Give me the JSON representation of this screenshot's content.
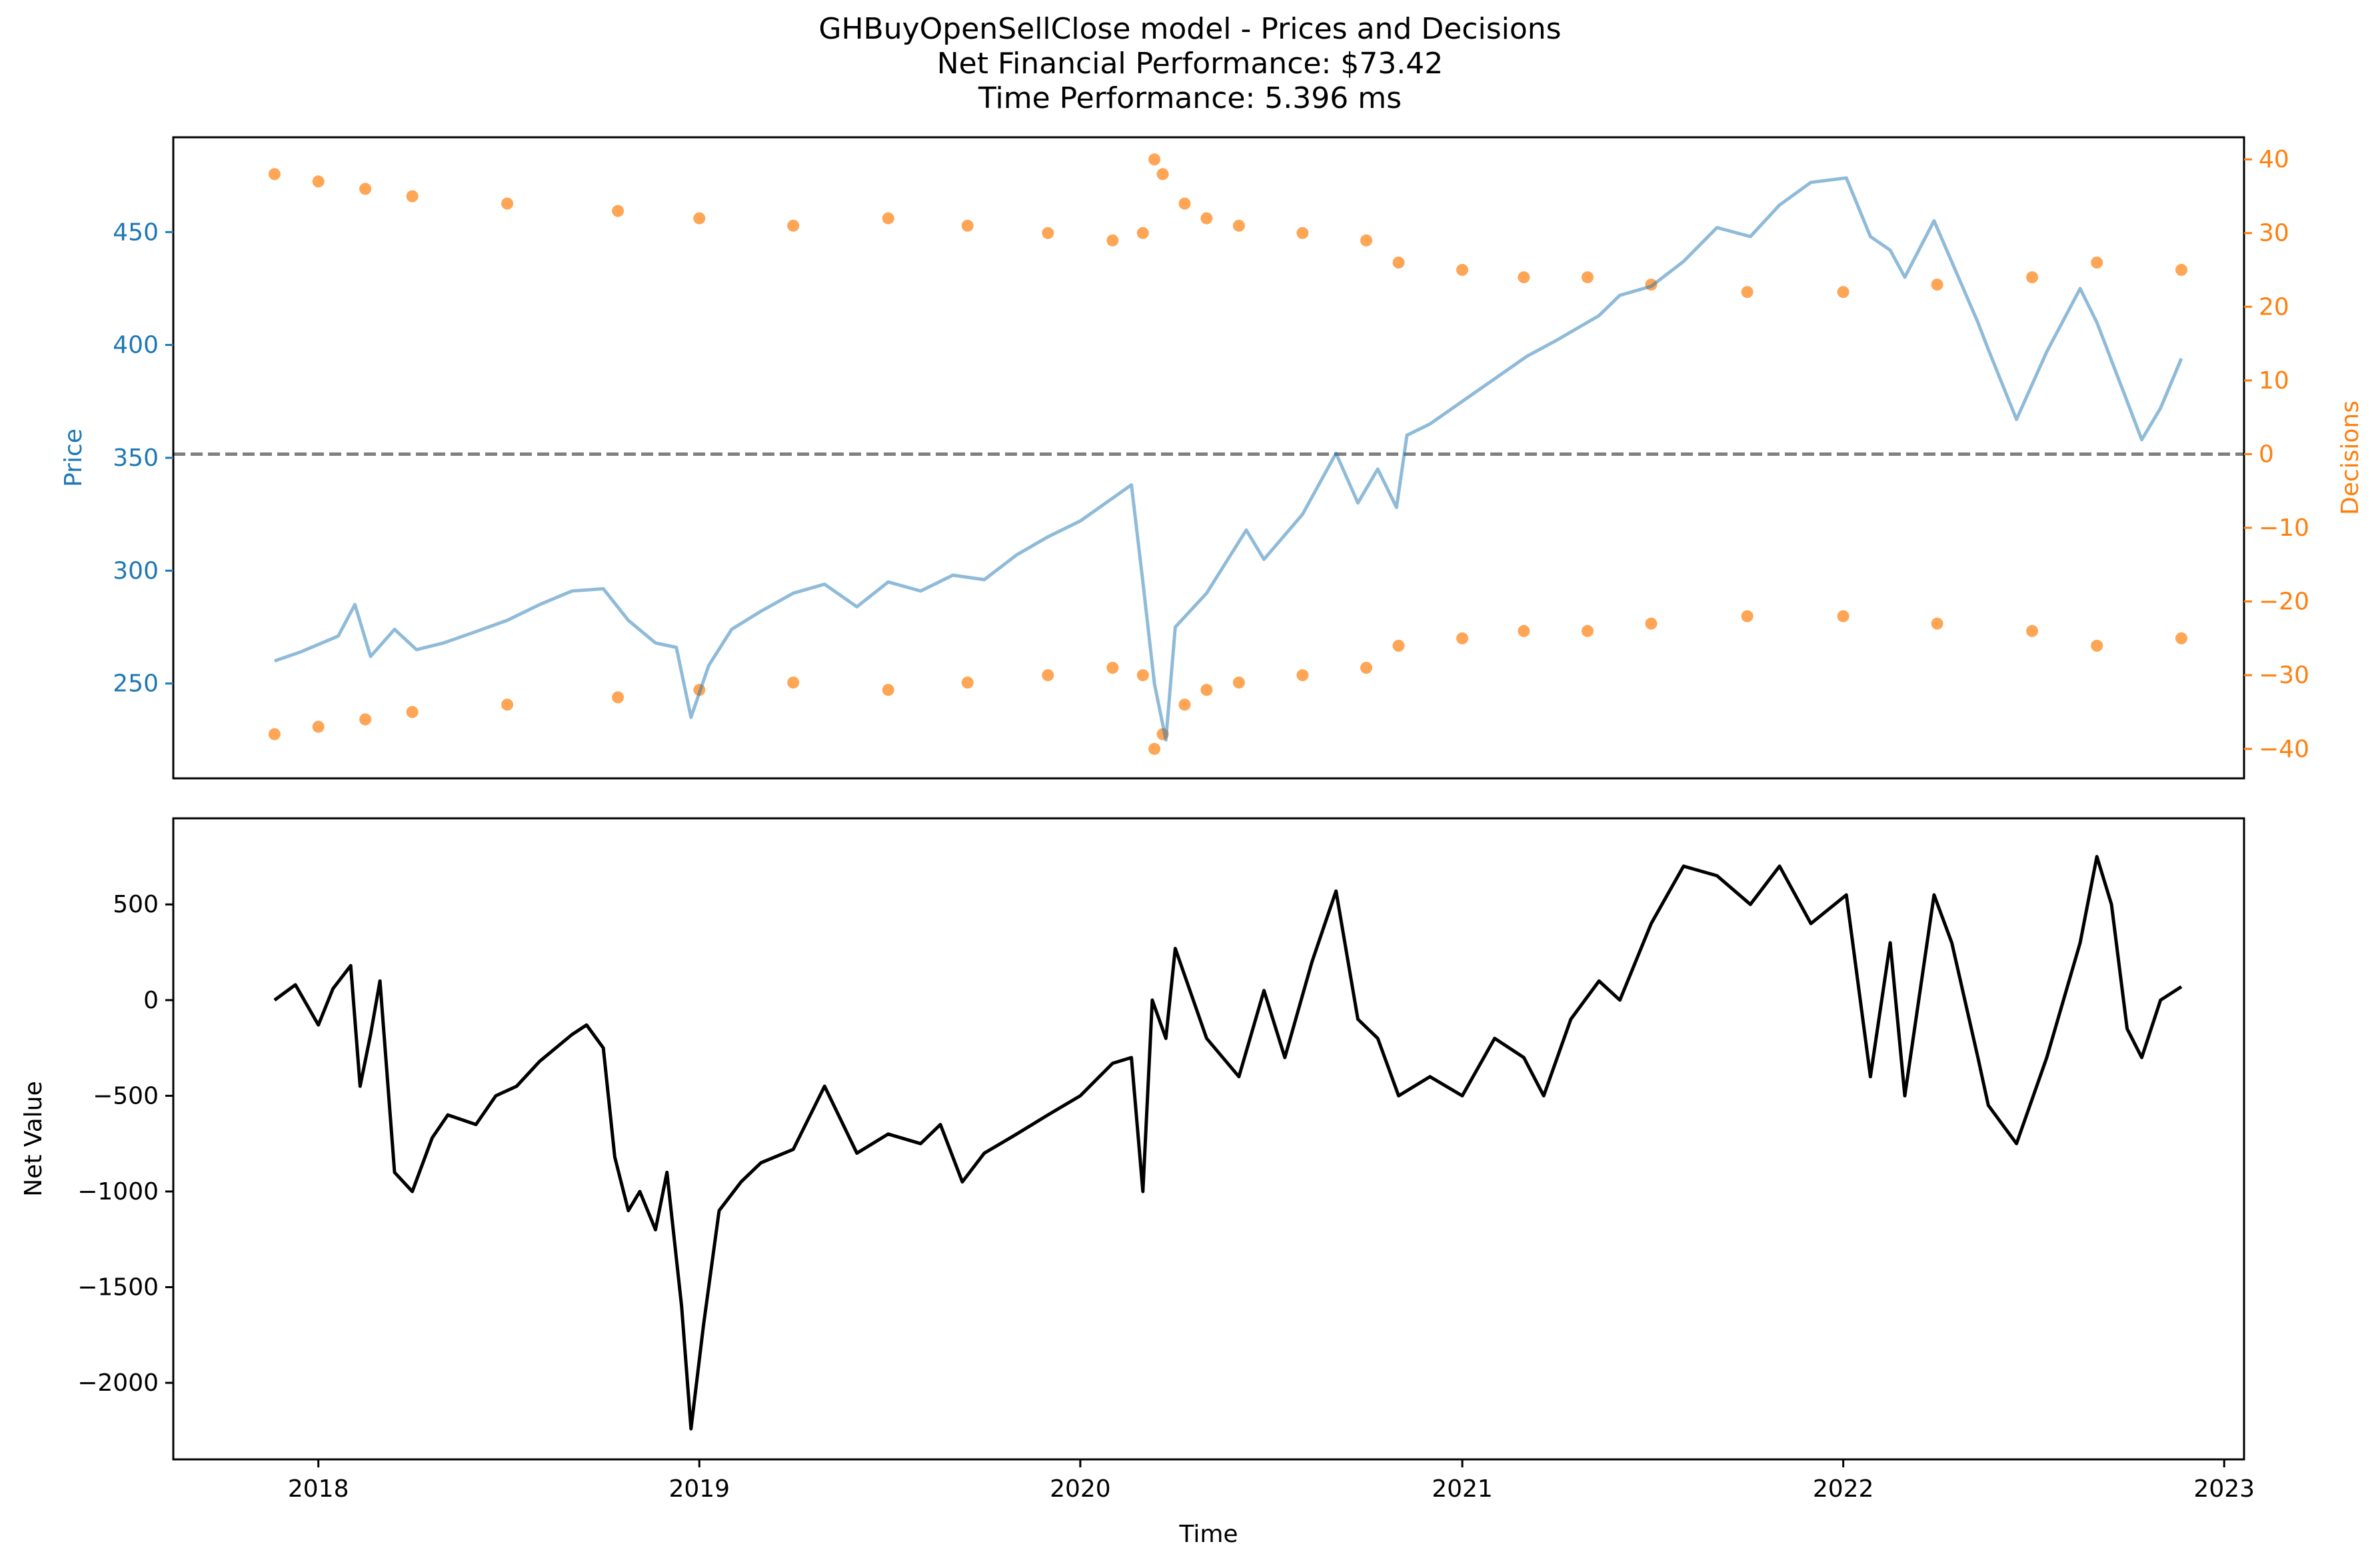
{
  "figure_title": [
    "GHBuyOpenSellClose model - Prices and Decisions",
    "Net Financial Performance: $73.42",
    "Time Performance: 5.396 ms"
  ],
  "colors": {
    "price": "#1f77b4",
    "decisions": "#ff7f0e",
    "net_value": "#000000",
    "zero_line": "#808080"
  },
  "chart_data": [
    {
      "type": "line",
      "panel": "top",
      "ylabel": "Price",
      "ylabel_right": "Decisions",
      "xlim": [
        "2017-08-15",
        "2023-01-20"
      ],
      "ylim": [
        208,
        492
      ],
      "ylim_right": [
        -44,
        43
      ],
      "yticks": [
        250,
        300,
        350,
        400,
        450
      ],
      "yticks_right": [
        -40,
        -30,
        -20,
        -10,
        0,
        10,
        20,
        30,
        40
      ],
      "hline_right": 0,
      "series": [
        {
          "axis": "left",
          "style": "line",
          "x": [
            "2017-11-20",
            "2017-12-15",
            "2018-01-20",
            "2018-02-05",
            "2018-02-20",
            "2018-03-15",
            "2018-04-05",
            "2018-05-01",
            "2018-06-01",
            "2018-07-01",
            "2018-08-01",
            "2018-09-01",
            "2018-10-01",
            "2018-10-25",
            "2018-11-20",
            "2018-12-10",
            "2018-12-24",
            "2019-01-10",
            "2019-02-01",
            "2019-03-01",
            "2019-04-01",
            "2019-05-01",
            "2019-06-01",
            "2019-07-01",
            "2019-08-01",
            "2019-09-01",
            "2019-10-01",
            "2019-11-01",
            "2019-12-01",
            "2020-01-01",
            "2020-02-19",
            "2020-03-01",
            "2020-03-12",
            "2020-03-23",
            "2020-04-01",
            "2020-05-01",
            "2020-06-08",
            "2020-06-25",
            "2020-08-01",
            "2020-09-02",
            "2020-09-23",
            "2020-10-12",
            "2020-10-30",
            "2020-11-09",
            "2020-12-01",
            "2021-01-01",
            "2021-02-01",
            "2021-03-04",
            "2021-04-01",
            "2021-05-12",
            "2021-06-01",
            "2021-07-01",
            "2021-08-01",
            "2021-09-02",
            "2021-10-04",
            "2021-11-01",
            "2021-12-01",
            "2022-01-04",
            "2022-01-27",
            "2022-02-15",
            "2022-03-01",
            "2022-03-29",
            "2022-05-10",
            "2022-05-20",
            "2022-06-16",
            "2022-07-15",
            "2022-08-16",
            "2022-09-01",
            "2022-09-30",
            "2022-10-14",
            "2022-11-01",
            "2022-11-21"
          ],
          "values": [
            260,
            264,
            271,
            285,
            262,
            274,
            265,
            268,
            273,
            278,
            285,
            291,
            292,
            278,
            268,
            266,
            235,
            258,
            274,
            282,
            290,
            294,
            284,
            295,
            291,
            298,
            296,
            307,
            315,
            322,
            338,
            295,
            250,
            225,
            275,
            290,
            318,
            305,
            325,
            352,
            330,
            345,
            328,
            360,
            365,
            375,
            385,
            395,
            402,
            413,
            422,
            426,
            437,
            452,
            448,
            462,
            472,
            474,
            448,
            442,
            430,
            455,
            410,
            398,
            367,
            397,
            425,
            410,
            375,
            358,
            372,
            394
          ]
        },
        {
          "axis": "right",
          "name": "",
          "style": "scatter",
          "x": [
            "2017-11-20",
            "2018-01-01",
            "2018-02-15",
            "2018-04-01",
            "2018-07-01",
            "2018-10-15",
            "2019-01-01",
            "2019-04-01",
            "2019-07-01",
            "2019-09-15",
            "2019-12-01",
            "2020-02-01",
            "2020-03-01",
            "2020-03-12",
            "2020-03-20",
            "2020-04-10",
            "2020-05-01",
            "2020-06-01",
            "2020-08-01",
            "2020-10-01",
            "2020-11-01",
            "2021-01-01",
            "2021-03-01",
            "2021-05-01",
            "2021-07-01",
            "2021-10-01",
            "2022-01-01",
            "2022-04-01",
            "2022-07-01",
            "2022-09-01",
            "2022-11-21"
          ],
          "values": [
            38,
            37,
            36,
            35,
            34,
            33,
            32,
            31,
            32,
            31,
            30,
            29,
            30,
            40,
            38,
            34,
            32,
            31,
            30,
            29,
            26,
            25,
            24,
            24,
            23,
            22,
            22,
            23,
            24,
            26,
            25
          ]
        },
        {
          "axis": "right",
          "name": "",
          "style": "scatter",
          "x": [
            "2017-11-20",
            "2018-01-01",
            "2018-02-15",
            "2018-04-01",
            "2018-07-01",
            "2018-10-15",
            "2019-01-01",
            "2019-04-01",
            "2019-07-01",
            "2019-09-15",
            "2019-12-01",
            "2020-02-01",
            "2020-03-01",
            "2020-03-12",
            "2020-03-20",
            "2020-04-10",
            "2020-05-01",
            "2020-06-01",
            "2020-08-01",
            "2020-10-01",
            "2020-11-01",
            "2021-01-01",
            "2021-03-01",
            "2021-05-01",
            "2021-07-01",
            "2021-10-01",
            "2022-01-01",
            "2022-04-01",
            "2022-07-01",
            "2022-09-01",
            "2022-11-21"
          ],
          "values": [
            -38,
            -37,
            -36,
            -35,
            -34,
            -33,
            -32,
            -31,
            -32,
            -31,
            -30,
            -29,
            -30,
            -40,
            -38,
            -34,
            -32,
            -31,
            -30,
            -29,
            -26,
            -25,
            -24,
            -24,
            -23,
            -22,
            -22,
            -23,
            -24,
            -26,
            -25
          ]
        }
      ]
    },
    {
      "type": "line",
      "panel": "bottom",
      "xlabel": "Time",
      "ylabel": "Net Value",
      "xlim": [
        "2017-08-15",
        "2023-01-20"
      ],
      "ylim": [
        -2400,
        950
      ],
      "xticks": [
        "2018",
        "2019",
        "2020",
        "2021",
        "2022",
        "2023"
      ],
      "yticks": [
        -2000,
        -1500,
        -1000,
        -500,
        0,
        500
      ],
      "series": [
        {
          "style": "line",
          "x": [
            "2017-11-20",
            "2017-12-10",
            "2018-01-01",
            "2018-01-15",
            "2018-02-01",
            "2018-02-10",
            "2018-02-20",
            "2018-03-01",
            "2018-03-15",
            "2018-04-01",
            "2018-04-20",
            "2018-05-05",
            "2018-06-01",
            "2018-06-20",
            "2018-07-10",
            "2018-08-01",
            "2018-09-01",
            "2018-09-15",
            "2018-10-01",
            "2018-10-12",
            "2018-10-25",
            "2018-11-05",
            "2018-11-20",
            "2018-12-01",
            "2018-12-15",
            "2018-12-24",
            "2019-01-05",
            "2019-01-20",
            "2019-02-10",
            "2019-03-01",
            "2019-04-01",
            "2019-05-01",
            "2019-06-01",
            "2019-07-01",
            "2019-08-01",
            "2019-08-20",
            "2019-09-10",
            "2019-10-01",
            "2019-11-01",
            "2019-12-01",
            "2020-01-01",
            "2020-02-01",
            "2020-02-19",
            "2020-03-01",
            "2020-03-10",
            "2020-03-23",
            "2020-04-01",
            "2020-05-01",
            "2020-06-01",
            "2020-06-25",
            "2020-07-15",
            "2020-08-10",
            "2020-09-02",
            "2020-09-23",
            "2020-10-12",
            "2020-11-01",
            "2020-12-01",
            "2021-01-01",
            "2021-02-01",
            "2021-03-01",
            "2021-03-20",
            "2021-04-15",
            "2021-05-12",
            "2021-06-01",
            "2021-07-01",
            "2021-08-01",
            "2021-09-02",
            "2021-10-04",
            "2021-11-01",
            "2021-12-01",
            "2022-01-04",
            "2022-01-27",
            "2022-02-15",
            "2022-03-01",
            "2022-03-29",
            "2022-04-15",
            "2022-05-10",
            "2022-05-20",
            "2022-06-16",
            "2022-07-15",
            "2022-08-16",
            "2022-09-01",
            "2022-09-15",
            "2022-09-30",
            "2022-10-14",
            "2022-11-01",
            "2022-11-21"
          ],
          "values": [
            0,
            80,
            -130,
            60,
            180,
            -450,
            -180,
            100,
            -900,
            -1000,
            -720,
            -600,
            -650,
            -500,
            -450,
            -320,
            -180,
            -130,
            -250,
            -820,
            -1100,
            -1000,
            -1200,
            -900,
            -1600,
            -2240,
            -1700,
            -1100,
            -950,
            -850,
            -780,
            -450,
            -800,
            -700,
            -750,
            -650,
            -950,
            -800,
            -700,
            -600,
            -500,
            -330,
            -300,
            -1000,
            0,
            -200,
            270,
            -200,
            -400,
            50,
            -300,
            200,
            570,
            -100,
            -200,
            -500,
            -400,
            -500,
            -200,
            -300,
            -500,
            -100,
            100,
            0,
            400,
            700,
            650,
            500,
            700,
            400,
            550,
            -400,
            300,
            -500,
            550,
            300,
            -300,
            -550,
            -750,
            -300,
            300,
            750,
            500,
            -150,
            -300,
            0,
            70
          ]
        }
      ]
    }
  ]
}
